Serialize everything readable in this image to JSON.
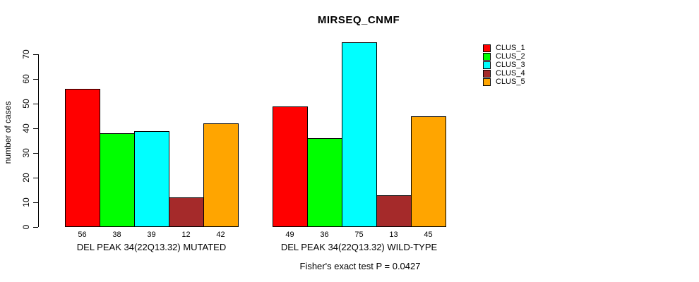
{
  "chart_data": {
    "type": "bar",
    "title": "MIRSEQ_CNMF",
    "ylabel": "number of cases",
    "xlabel": "",
    "ylim": [
      0,
      70
    ],
    "yticks": [
      0,
      10,
      20,
      30,
      40,
      50,
      60,
      70
    ],
    "grid": false,
    "legend_position": "right",
    "categories": [
      "DEL PEAK 34(22Q13.32) MUTATED",
      "DEL PEAK 34(22Q13.32) WILD-TYPE"
    ],
    "groups": [
      {
        "label": "DEL PEAK 34(22Q13.32) MUTATED",
        "values": [
          56,
          38,
          39,
          12,
          42
        ]
      },
      {
        "label": "DEL PEAK 34(22Q13.32) WILD-TYPE",
        "values": [
          49,
          36,
          75,
          13,
          45
        ]
      }
    ],
    "series": [
      {
        "name": "CLUS_1",
        "color": "#FF0000"
      },
      {
        "name": "CLUS_2",
        "color": "#00FF00"
      },
      {
        "name": "CLUS_3",
        "color": "#00FFFF"
      },
      {
        "name": "CLUS_4",
        "color": "#A52A2A"
      },
      {
        "name": "CLUS_5",
        "color": "#FFA500"
      }
    ],
    "caption": "Fisher's exact test P = 0.0427"
  }
}
